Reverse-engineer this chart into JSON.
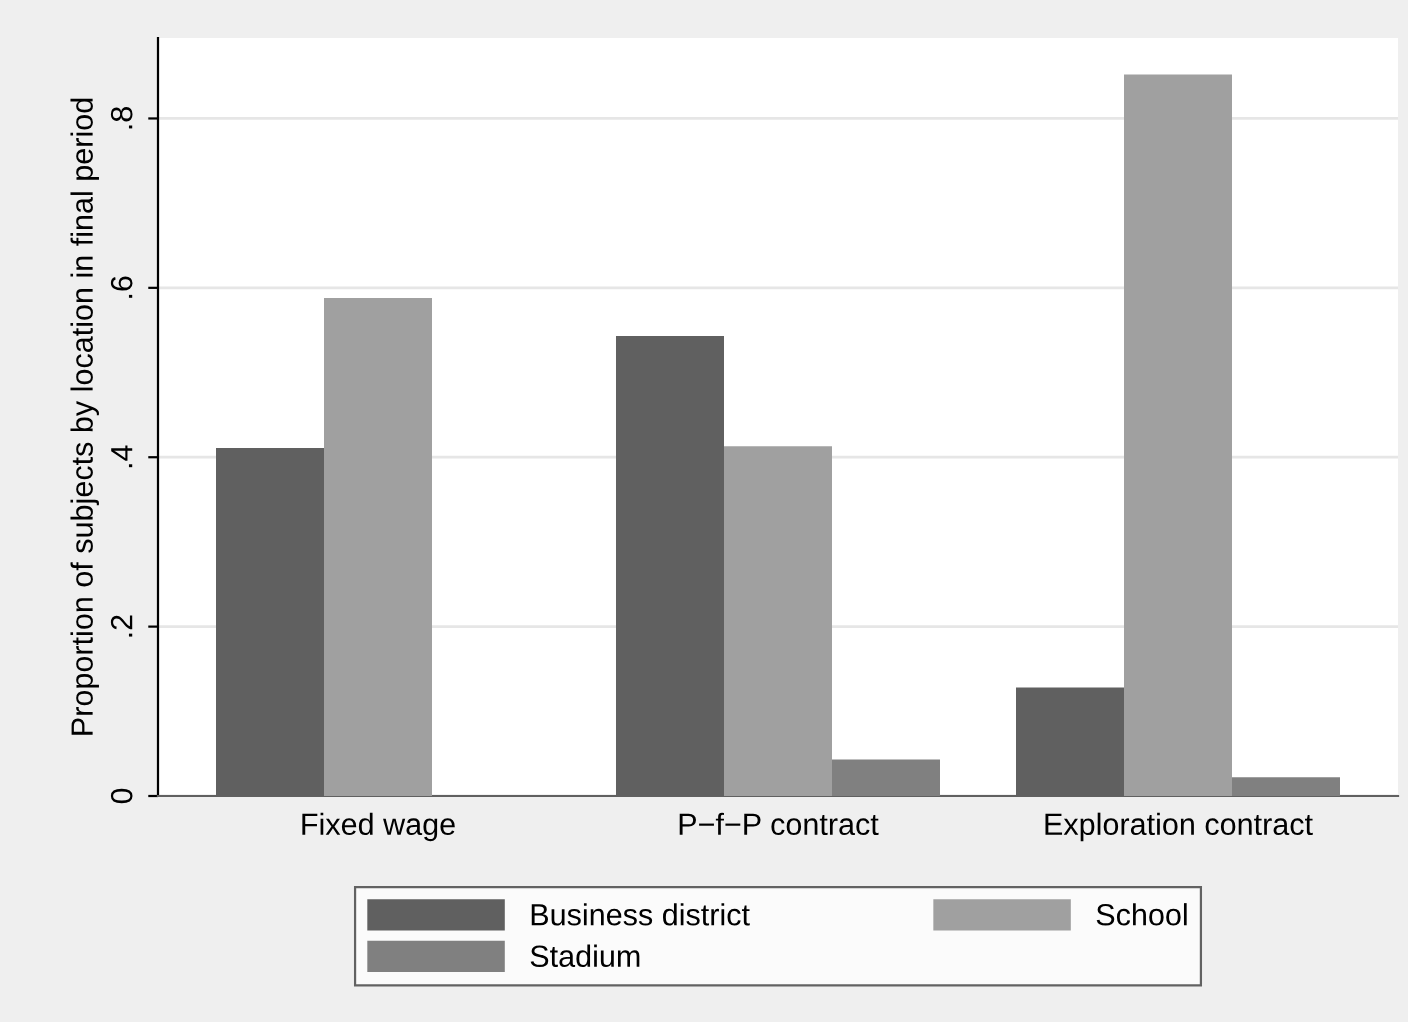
{
  "chart_data": {
    "type": "bar",
    "ylabel": "Proportion of subjects by location in final period",
    "categories": [
      "Fixed wage",
      "P−f−P contract",
      "Exploration contract"
    ],
    "series": [
      {
        "name": "Business district",
        "color": "#606060",
        "values": [
          0.411,
          0.543,
          0.128
        ]
      },
      {
        "name": "School",
        "color": "#a0a0a0",
        "values": [
          0.588,
          0.413,
          0.852
        ]
      },
      {
        "name": "Stadium",
        "color": "#808080",
        "values": [
          0,
          0.043,
          0.022
        ]
      }
    ],
    "ylim": [
      0,
      0.895
    ],
    "yticks": [
      0,
      {
        "value": 0.2,
        "label": ".2"
      },
      {
        "value": 0.4,
        "label": ".4"
      },
      {
        "value": 0.6,
        "label": ".6"
      },
      {
        "value": 0.8,
        "label": ".8"
      }
    ],
    "grid": "y",
    "legend": "bottom"
  }
}
